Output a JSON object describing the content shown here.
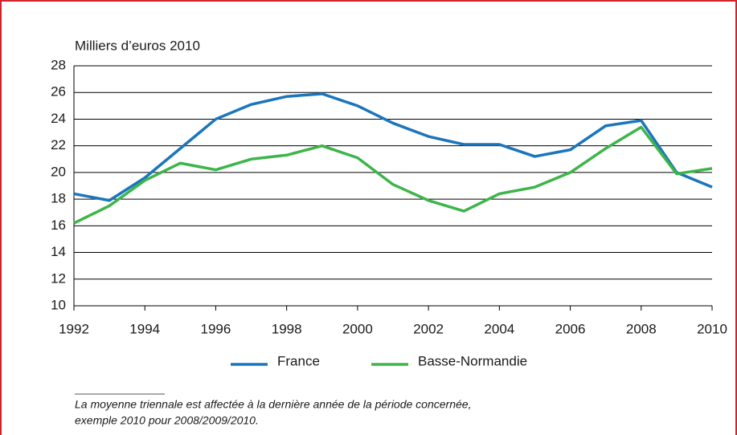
{
  "chart_data": {
    "type": "line",
    "y_label": "Milliers d’euros 2010",
    "x": [
      1992,
      1993,
      1994,
      1995,
      1996,
      1997,
      1998,
      1999,
      2000,
      2001,
      2002,
      2003,
      2004,
      2005,
      2006,
      2007,
      2008,
      2009,
      2010
    ],
    "series": [
      {
        "name": "France",
        "color": "#1b75bc",
        "values": [
          18.4,
          17.9,
          19.6,
          21.8,
          24.0,
          25.1,
          25.7,
          25.9,
          25.0,
          23.7,
          22.7,
          22.1,
          22.1,
          21.2,
          21.7,
          23.5,
          23.9,
          20.0,
          18.9
        ]
      },
      {
        "name": "Basse-Normandie",
        "color": "#3db54a",
        "values": [
          16.2,
          17.5,
          19.4,
          20.7,
          20.2,
          21.0,
          21.3,
          22.0,
          21.1,
          19.1,
          17.9,
          17.1,
          18.4,
          18.9,
          20.0,
          21.8,
          23.4,
          19.9,
          20.3
        ]
      }
    ],
    "xlim": [
      1992,
      2010
    ],
    "xticks": [
      1992,
      1994,
      1996,
      1998,
      2000,
      2002,
      2004,
      2006,
      2008,
      2010
    ],
    "ylim": [
      10,
      28
    ],
    "yticks": [
      10,
      12,
      14,
      16,
      18,
      20,
      22,
      24,
      26,
      28
    ],
    "grid": true,
    "legend": "bottom",
    "notes": [
      "La moyenne triennale est affectée à la dernière année de la période concernée,",
      "exemple 2010 pour 2008/2009/2010."
    ]
  }
}
